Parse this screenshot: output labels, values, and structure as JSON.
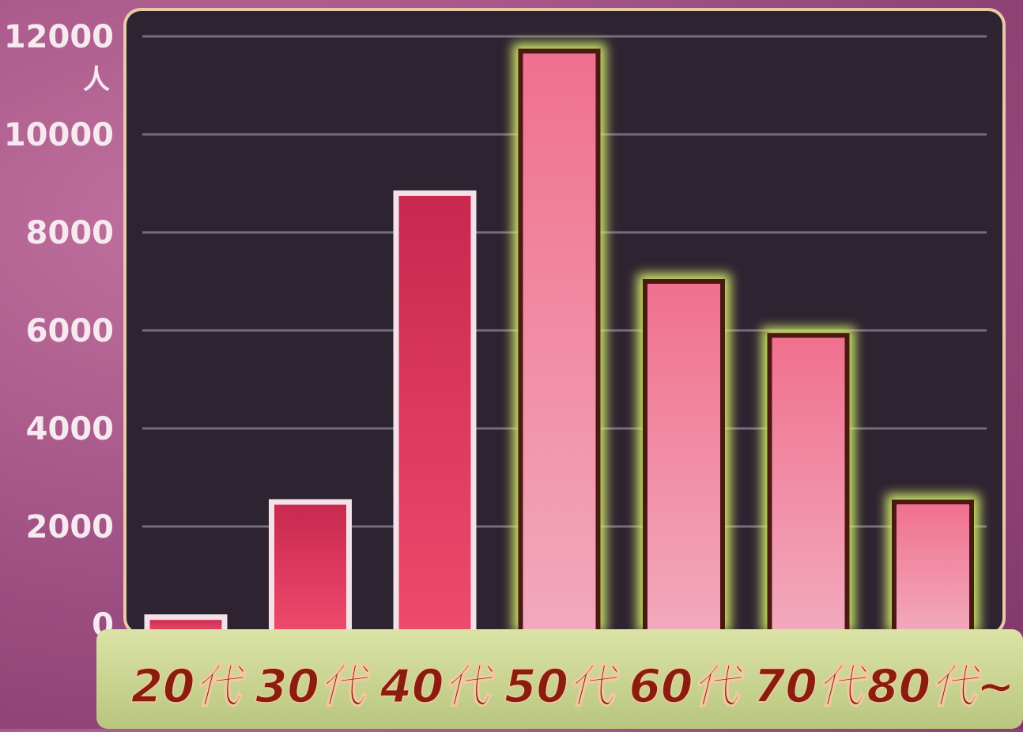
{
  "chart_data": {
    "type": "bar",
    "title": "",
    "xlabel": "",
    "ylabel": "",
    "unit_label": "人",
    "categories": [
      "20代",
      "30代",
      "40代",
      "50代",
      "60代",
      "70代",
      "80代~"
    ],
    "values": [
      150,
      2500,
      8800,
      11700,
      7000,
      5900,
      2500
    ],
    "highlighted": [
      false,
      false,
      false,
      true,
      true,
      true,
      true
    ],
    "ylim": [
      0,
      12000
    ],
    "yticks": [
      0,
      2000,
      4000,
      6000,
      8000,
      10000,
      12000
    ],
    "ytick_labels": [
      "0",
      "2000",
      "4000",
      "6000",
      "8000",
      "10000",
      "12000"
    ],
    "grid": true,
    "colors": {
      "plot_bg": "#2e2330",
      "grid": "#8f8696",
      "bar_light": "#f2a2b8",
      "bar_mid": "#f07a98",
      "bar_dark": "#cc2f52",
      "bar_outline_plain": "#f4e2e8",
      "bar_outline_highlight": "#4a1a10",
      "glow": "#d6f06a",
      "category_band": "#ccd79a",
      "category_text": "#8a1e0e",
      "axis_text": "#f6eaf0"
    }
  }
}
